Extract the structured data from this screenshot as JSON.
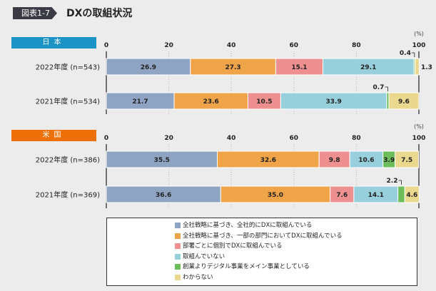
{
  "header": {
    "badge": "図表1-7",
    "title": "DXの取組状況"
  },
  "chart_data": [
    {
      "type": "bar",
      "stacked": true,
      "orientation": "horizontal",
      "panel": "日本",
      "unit": "(%)",
      "xlim": [
        0,
        100
      ],
      "ticks": [
        "0",
        "20",
        "40",
        "60",
        "80",
        "100"
      ],
      "categories": [
        "2022年度 (n=543)",
        "2021年度 (n=534)"
      ],
      "series": [
        {
          "name": "全社戦略に基づき、全社的にDXに取組んでいる",
          "values": [
            26.9,
            21.7
          ]
        },
        {
          "name": "全社戦略に基づき、一部の部門においてDXに取組んでいる",
          "values": [
            27.3,
            23.6
          ]
        },
        {
          "name": "部署ごとに個別でDXに取組んでいる",
          "values": [
            15.1,
            10.5
          ]
        },
        {
          "name": "取組んでいない",
          "values": [
            29.1,
            33.9
          ]
        },
        {
          "name": "創業よりデジタル事業をメイン事業としている",
          "values": [
            0.4,
            0.7
          ]
        },
        {
          "name": "わからない",
          "values": [
            1.3,
            9.6
          ]
        }
      ]
    },
    {
      "type": "bar",
      "stacked": true,
      "orientation": "horizontal",
      "panel": "米国",
      "unit": "(%)",
      "xlim": [
        0,
        100
      ],
      "ticks": [
        "0",
        "20",
        "40",
        "60",
        "80",
        "100"
      ],
      "categories": [
        "2022年度 (n=386)",
        "2021年度 (n=369)"
      ],
      "series": [
        {
          "name": "全社戦略に基づき、全社的にDXに取組んでいる",
          "values": [
            35.5,
            36.6
          ]
        },
        {
          "name": "全社戦略に基づき、一部の部門においてDXに取組んでいる",
          "values": [
            32.6,
            35.0
          ]
        },
        {
          "name": "部署ごとに個別でDXに取組んでいる",
          "values": [
            9.8,
            7.6
          ]
        },
        {
          "name": "取組んでいない",
          "values": [
            10.6,
            14.1
          ]
        },
        {
          "name": "創業よりデジタル事業をメイン事業としている",
          "values": [
            3.9,
            2.2
          ]
        },
        {
          "name": "わからない",
          "values": [
            7.5,
            4.6
          ]
        }
      ]
    }
  ],
  "colors": [
    "#8ea4c2",
    "#f0a449",
    "#ef9090",
    "#98cfdc",
    "#6dbd5a",
    "#ebd88f"
  ],
  "panel_colors": [
    "#1b93c4",
    "#ee7008"
  ],
  "legend": [
    "全社戦略に基づき、全社的にDXに取組んでいる",
    "全社戦略に基づき、一部の部門においてDXに取組んでいる",
    "部署ごとに個別でDXに取組んでいる",
    "取組んでいない",
    "創業よりデジタル事業をメイン事業としている",
    "わからない"
  ]
}
